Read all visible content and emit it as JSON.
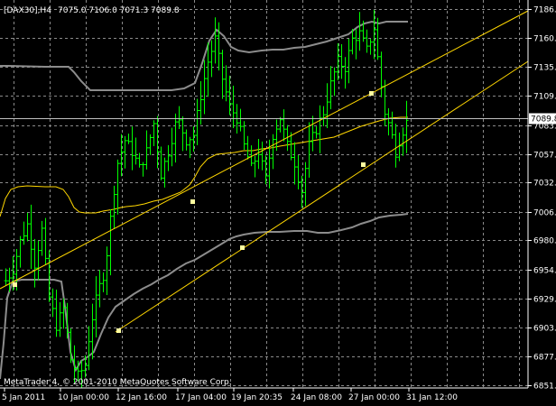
{
  "header": {
    "symbol_label": "[DAX30],H4",
    "ohlc_label": "7075.0 7106.0 7071.3 7089.8"
  },
  "watermark": "MetaTrader 4, © 2001-2010 MetaQuotes Software Corp.",
  "current_price_label": "7089.8",
  "colors": {
    "background": "#000000",
    "grid": "#8a8a8a",
    "candles": "#00ff00",
    "bands": "#8c8c8c",
    "moving_average": "#ffd700",
    "channel_lines": "#ffd700",
    "channel_points": "#ffffa0",
    "bid_line": "#c0c0c0"
  },
  "chart_data": {
    "type": "ohlc",
    "symbol": "[DAX30]",
    "timeframe": "H4",
    "y_ticks": [
      "7186.9",
      "7160.9",
      "7135.1",
      "7109.4",
      "7083.6",
      "7057.9",
      "7032.4",
      "7006.4",
      "6980.9",
      "6954.9",
      "6929.4",
      "6903.4",
      "6877.9",
      "6851.9"
    ],
    "x_ticks": [
      "5 Jan 2011",
      "10 Jan 00:00",
      "12 Jan 16:00",
      "17 Jan 04:00",
      "19 Jan 20:35",
      "24 Jan 08:00",
      "27 Jan 00:00",
      "31 Jan 12:00"
    ],
    "ylim": [
      6851.9,
      7186.9
    ],
    "grid": true,
    "last_close": 7089.8
  }
}
